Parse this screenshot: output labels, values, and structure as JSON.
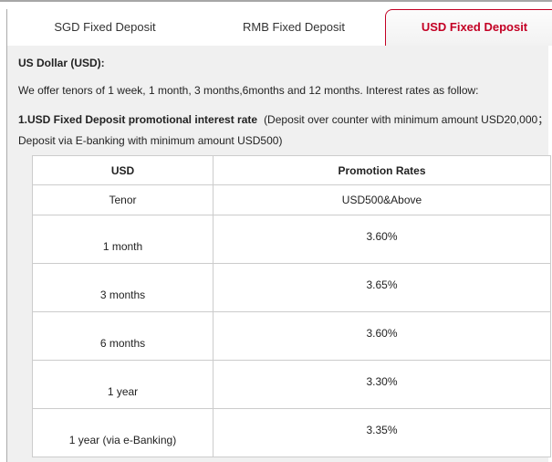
{
  "tabs": [
    {
      "label": "SGD Fixed Deposit",
      "active": false
    },
    {
      "label": "RMB Fixed Deposit",
      "active": false
    },
    {
      "label": "USD Fixed Deposit",
      "active": true
    }
  ],
  "content": {
    "heading": "US Dollar (USD):",
    "intro": "We offer tenors of 1 week, 1 month, 3 months,6months and 12 months. Interest rates as follow:",
    "promo_title": "1.USD Fixed Deposit promotional interest rate",
    "promo_note_line1": "(Deposit over counter with minimum amount USD20,000；",
    "promo_note_line2": "Deposit via E-banking with minimum amount USD500)"
  },
  "table": {
    "col1_header": "USD",
    "col2_header": "Promotion Rates",
    "col1_subheader": "Tenor",
    "col2_subheader": "USD500&Above",
    "rows": [
      {
        "tenor": "1 month",
        "rate": "3.60%"
      },
      {
        "tenor": "3 months",
        "rate": "3.65%"
      },
      {
        "tenor": "6 months",
        "rate": "3.60%"
      },
      {
        "tenor": "1 year",
        "rate": "3.30%"
      },
      {
        "tenor": "1 year (via e-Banking)",
        "rate": "3.35%"
      }
    ]
  },
  "colors": {
    "accent_red": "#c30024",
    "panel_bg": "#f0f0f0",
    "table_border": "#cccccc"
  }
}
